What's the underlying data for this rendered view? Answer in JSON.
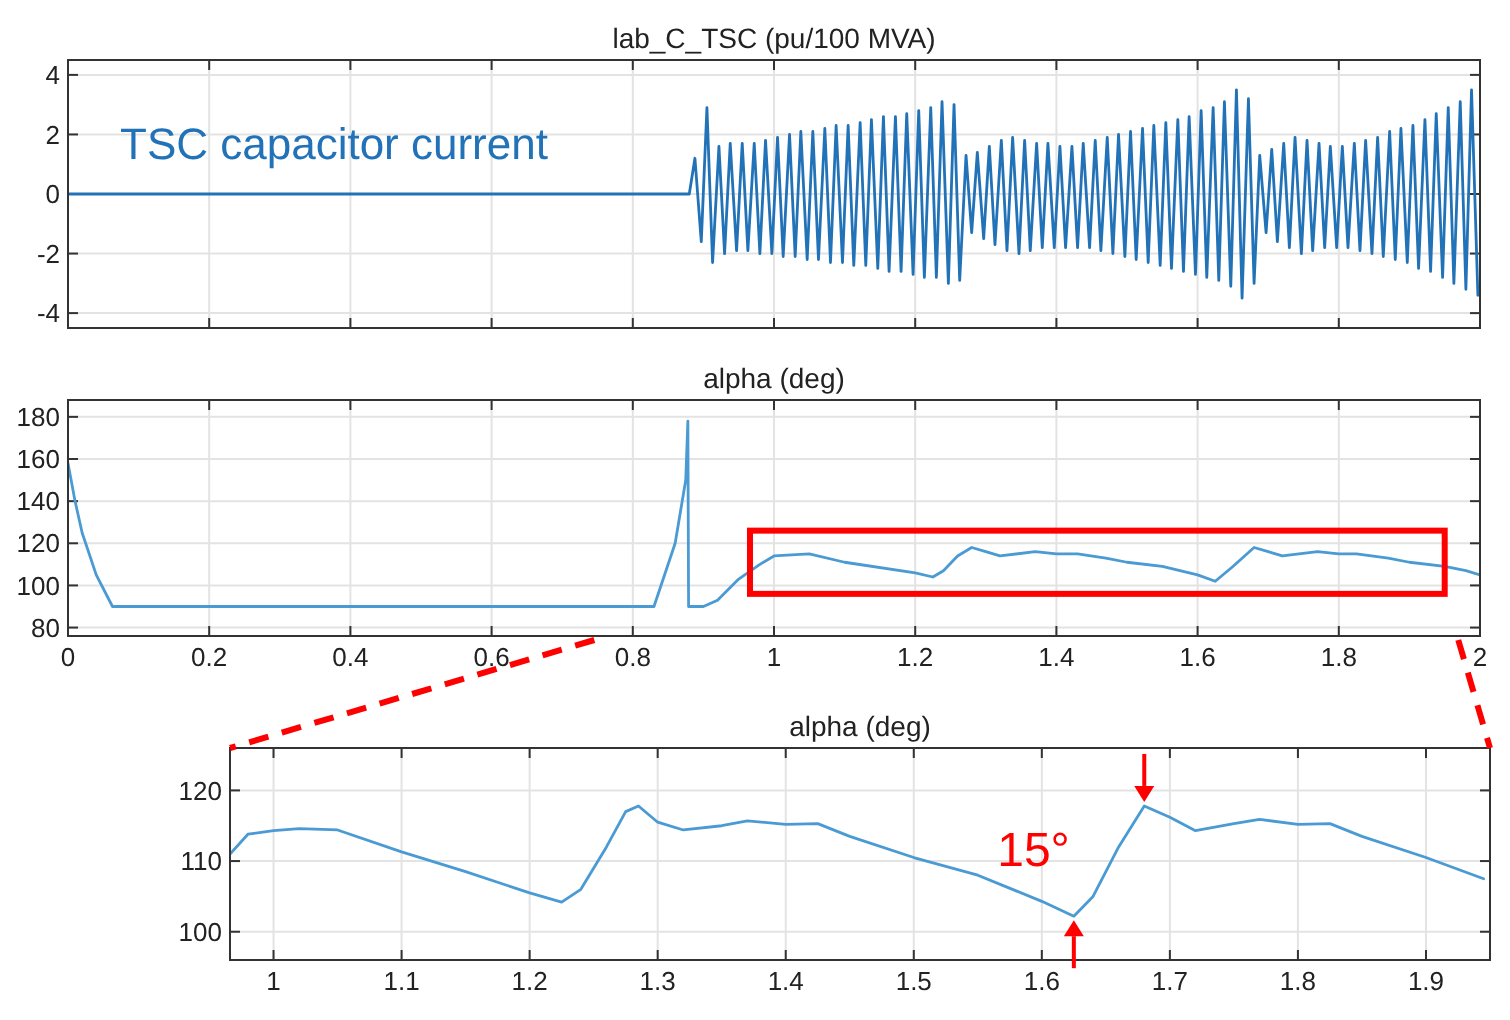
{
  "chart_data": [
    {
      "type": "line",
      "title": "lab_C_TSC (pu/100 MVA)",
      "xlim": [
        0,
        2
      ],
      "xticks": [
        0,
        0.2,
        0.4,
        0.6,
        0.8,
        1,
        1.2,
        1.4,
        1.6,
        1.8,
        2
      ],
      "ylim": [
        -4.5,
        4.5
      ],
      "yticks": [
        -4,
        -2,
        0,
        2,
        4
      ],
      "grid": true,
      "tick_labels": "y",
      "series": [
        {
          "name": "TSC capacitor current",
          "color": "#2272b8",
          "x": [
            0,
            0.88,
            0.888,
            0.897,
            0.905,
            0.913,
            0.922,
            0.93,
            0.938,
            0.947,
            0.955,
            0.963,
            0.972,
            0.98,
            0.988,
            0.997,
            1.005,
            1.013,
            1.022,
            1.03,
            1.038,
            1.047,
            1.055,
            1.063,
            1.072,
            1.08,
            1.088,
            1.097,
            1.105,
            1.113,
            1.122,
            1.13,
            1.138,
            1.147,
            1.155,
            1.163,
            1.172,
            1.18,
            1.188,
            1.197,
            1.205,
            1.213,
            1.222,
            1.23,
            1.238,
            1.247,
            1.255,
            1.263,
            1.272,
            1.28,
            1.288,
            1.297,
            1.305,
            1.313,
            1.322,
            1.33,
            1.338,
            1.347,
            1.355,
            1.363,
            1.372,
            1.38,
            1.388,
            1.397,
            1.405,
            1.413,
            1.422,
            1.43,
            1.438,
            1.447,
            1.455,
            1.463,
            1.472,
            1.48,
            1.488,
            1.497,
            1.505,
            1.513,
            1.522,
            1.53,
            1.538,
            1.547,
            1.555,
            1.563,
            1.572,
            1.58,
            1.588,
            1.597,
            1.605,
            1.613,
            1.622,
            1.63,
            1.638,
            1.647,
            1.655,
            1.663,
            1.672,
            1.68,
            1.688,
            1.697,
            1.705,
            1.713,
            1.722,
            1.73,
            1.738,
            1.747,
            1.755,
            1.763,
            1.772,
            1.78,
            1.788,
            1.797,
            1.805,
            1.813,
            1.822,
            1.83,
            1.838,
            1.847,
            1.855,
            1.863,
            1.872,
            1.88,
            1.888,
            1.897,
            1.905,
            1.913,
            1.922,
            1.93,
            1.938,
            1.947,
            1.955,
            1.963,
            1.972,
            1.98,
            1.988,
            1.997
          ],
          "values": [
            0,
            0,
            1.2,
            -1.6,
            2.9,
            -2.3,
            1.6,
            -2.0,
            1.7,
            -1.9,
            1.7,
            -1.9,
            1.7,
            -2.0,
            1.8,
            -2.0,
            1.9,
            -2.1,
            2.0,
            -2.1,
            2.1,
            -2.2,
            2.1,
            -2.2,
            2.2,
            -2.3,
            2.3,
            -2.3,
            2.3,
            -2.4,
            2.4,
            -2.4,
            2.5,
            -2.5,
            2.6,
            -2.6,
            2.6,
            -2.6,
            2.7,
            -2.7,
            2.8,
            -2.8,
            2.9,
            -2.8,
            3.1,
            -3.0,
            3.0,
            -2.9,
            1.3,
            -1.3,
            1.4,
            -1.5,
            1.6,
            -1.7,
            1.8,
            -1.9,
            1.9,
            -2.0,
            1.8,
            -1.9,
            1.7,
            -1.8,
            1.7,
            -1.8,
            1.6,
            -1.8,
            1.6,
            -1.8,
            1.7,
            -1.8,
            1.8,
            -1.9,
            1.9,
            -2.0,
            2.0,
            -2.1,
            2.1,
            -2.2,
            2.2,
            -2.3,
            2.3,
            -2.4,
            2.4,
            -2.5,
            2.5,
            -2.6,
            2.6,
            -2.7,
            2.8,
            -2.8,
            2.9,
            -2.9,
            3.1,
            -3.1,
            3.5,
            -3.5,
            3.2,
            -3.0,
            1.3,
            -1.3,
            1.5,
            -1.6,
            1.7,
            -1.8,
            1.9,
            -2.0,
            1.8,
            -1.9,
            1.7,
            -1.8,
            1.6,
            -1.8,
            1.6,
            -1.8,
            1.7,
            -1.9,
            1.8,
            -2.0,
            1.9,
            -2.1,
            2.1,
            -2.2,
            2.2,
            -2.3,
            2.3,
            -2.5,
            2.5,
            -2.6,
            2.7,
            -2.8,
            2.9,
            -3.0,
            3.1,
            -3.2,
            3.5,
            -3.4
          ]
        }
      ]
    },
    {
      "type": "line",
      "title": "alpha (deg)",
      "xlim": [
        0,
        2
      ],
      "xticks": [
        0,
        0.2,
        0.4,
        0.6,
        0.8,
        1,
        1.2,
        1.4,
        1.6,
        1.8,
        2
      ],
      "ylim": [
        76,
        188
      ],
      "yticks": [
        80,
        100,
        120,
        140,
        160,
        180
      ],
      "grid": true,
      "color": "#4a9ad4",
      "x": [
        0,
        0.01,
        0.02,
        0.04,
        0.063,
        0.83,
        0.86,
        0.875,
        0.878,
        0.879,
        0.9,
        0.92,
        0.95,
        0.98,
        1.0,
        1.05,
        1.1,
        1.2,
        1.225,
        1.24,
        1.26,
        1.28,
        1.3,
        1.32,
        1.37,
        1.4,
        1.43,
        1.47,
        1.5,
        1.55,
        1.6,
        1.625,
        1.65,
        1.68,
        1.7,
        1.72,
        1.77,
        1.8,
        1.825,
        1.87,
        1.9,
        1.95,
        1.98,
        2.0
      ],
      "values": [
        158,
        140,
        125,
        105,
        90,
        90,
        120,
        150,
        178,
        90,
        90,
        93,
        103,
        110,
        114,
        115,
        111,
        106,
        104,
        107,
        114,
        118,
        116,
        114,
        116,
        115,
        115,
        113,
        111,
        109,
        105,
        102,
        109,
        118,
        116,
        114,
        116,
        115,
        115,
        113,
        111,
        109,
        107,
        105
      ]
    },
    {
      "type": "line",
      "title": "alpha (deg)",
      "xlim": [
        0.966,
        1.95
      ],
      "xticks": [
        1,
        1.1,
        1.2,
        1.3,
        1.4,
        1.5,
        1.6,
        1.7,
        1.8,
        1.9
      ],
      "ylim": [
        96,
        126
      ],
      "yticks": [
        100,
        110,
        120
      ],
      "grid": true,
      "color": "#4a9ad4",
      "annotations": [
        "15°"
      ],
      "x": [
        0.966,
        0.98,
        1.0,
        1.02,
        1.05,
        1.1,
        1.15,
        1.2,
        1.225,
        1.24,
        1.26,
        1.275,
        1.285,
        1.3,
        1.32,
        1.35,
        1.37,
        1.4,
        1.425,
        1.45,
        1.5,
        1.55,
        1.6,
        1.625,
        1.64,
        1.66,
        1.68,
        1.7,
        1.72,
        1.75,
        1.77,
        1.8,
        1.825,
        1.85,
        1.9,
        1.945
      ],
      "values": [
        111,
        113.8,
        114.3,
        114.6,
        114.4,
        111.3,
        108.5,
        105.5,
        104.2,
        106,
        112,
        117,
        117.8,
        115.5,
        114.4,
        115,
        115.7,
        115.2,
        115.3,
        113.5,
        110.5,
        108,
        104.3,
        102.2,
        105,
        112,
        117.8,
        116.2,
        114.3,
        115.3,
        115.9,
        115.2,
        115.3,
        113.5,
        110.5,
        107.5
      ]
    }
  ]
}
